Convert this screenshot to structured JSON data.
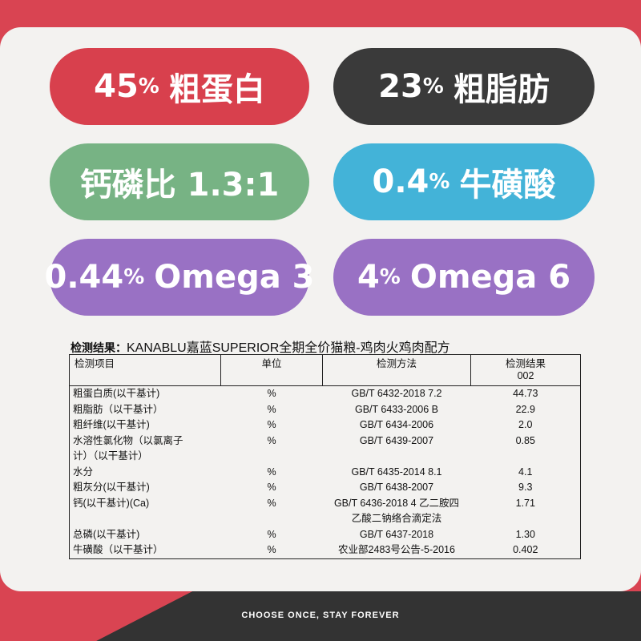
{
  "badges": [
    {
      "num": "45",
      "pct": "%",
      "label": "粗蛋白"
    },
    {
      "num": "23",
      "pct": "%",
      "label": "粗脂肪"
    },
    {
      "num": "",
      "pct": "",
      "label": "钙磷比 1.3:1"
    },
    {
      "num": "0.4",
      "pct": "%",
      "label": "牛磺酸"
    },
    {
      "num": "0.44",
      "pct": "%",
      "label": "Omega 3"
    },
    {
      "num": "4",
      "pct": "%",
      "label": "Omega 6"
    }
  ],
  "table": {
    "title_label": "检测结果：",
    "title_text": "KANABLU嘉蓝SUPERIOR全期全价猫粮-鸡肉火鸡肉配方",
    "headers": {
      "item": "检测项目",
      "unit": "单位",
      "method": "检测方法",
      "result": "检测结果",
      "result_sub": "002"
    },
    "rows": [
      {
        "item": "粗蛋白质(以干基计)",
        "unit": "%",
        "method": "GB/T 6432-2018 7.2",
        "result": "44.73"
      },
      {
        "item": "粗脂肪（以干基计）",
        "unit": "%",
        "method": "GB/T 6433-2006 B",
        "result": "22.9"
      },
      {
        "item": "粗纤维(以干基计)",
        "unit": "%",
        "method": "GB/T 6434-2006",
        "result": "2.0"
      },
      {
        "item": "水溶性氯化物（以氯离子",
        "unit": "%",
        "method": "GB/T 6439-2007",
        "result": "0.85"
      },
      {
        "item": "计）（以干基计）",
        "unit": "",
        "method": "",
        "result": ""
      },
      {
        "item": "水分",
        "unit": "%",
        "method": "GB/T 6435-2014 8.1",
        "result": "4.1"
      },
      {
        "item": "粗灰分(以干基计)",
        "unit": "%",
        "method": "GB/T 6438-2007",
        "result": "9.3"
      },
      {
        "item": "钙(以干基计)(Ca)",
        "unit": "%",
        "method": "GB/T 6436-2018 4  乙二胺四",
        "result": "1.71"
      },
      {
        "item": "",
        "unit": "",
        "method": "乙酸二钠络合滴定法",
        "result": ""
      },
      {
        "item": "总磷(以干基计)",
        "unit": "%",
        "method": "GB/T 6437-2018",
        "result": "1.30"
      },
      {
        "item": "牛磺酸（以干基计）",
        "unit": "%",
        "method": "农业部2483号公告-5-2016",
        "result": "0.402"
      }
    ]
  },
  "footer": {
    "slogan": "CHOOSE ONCE, STAY FOREVER"
  }
}
